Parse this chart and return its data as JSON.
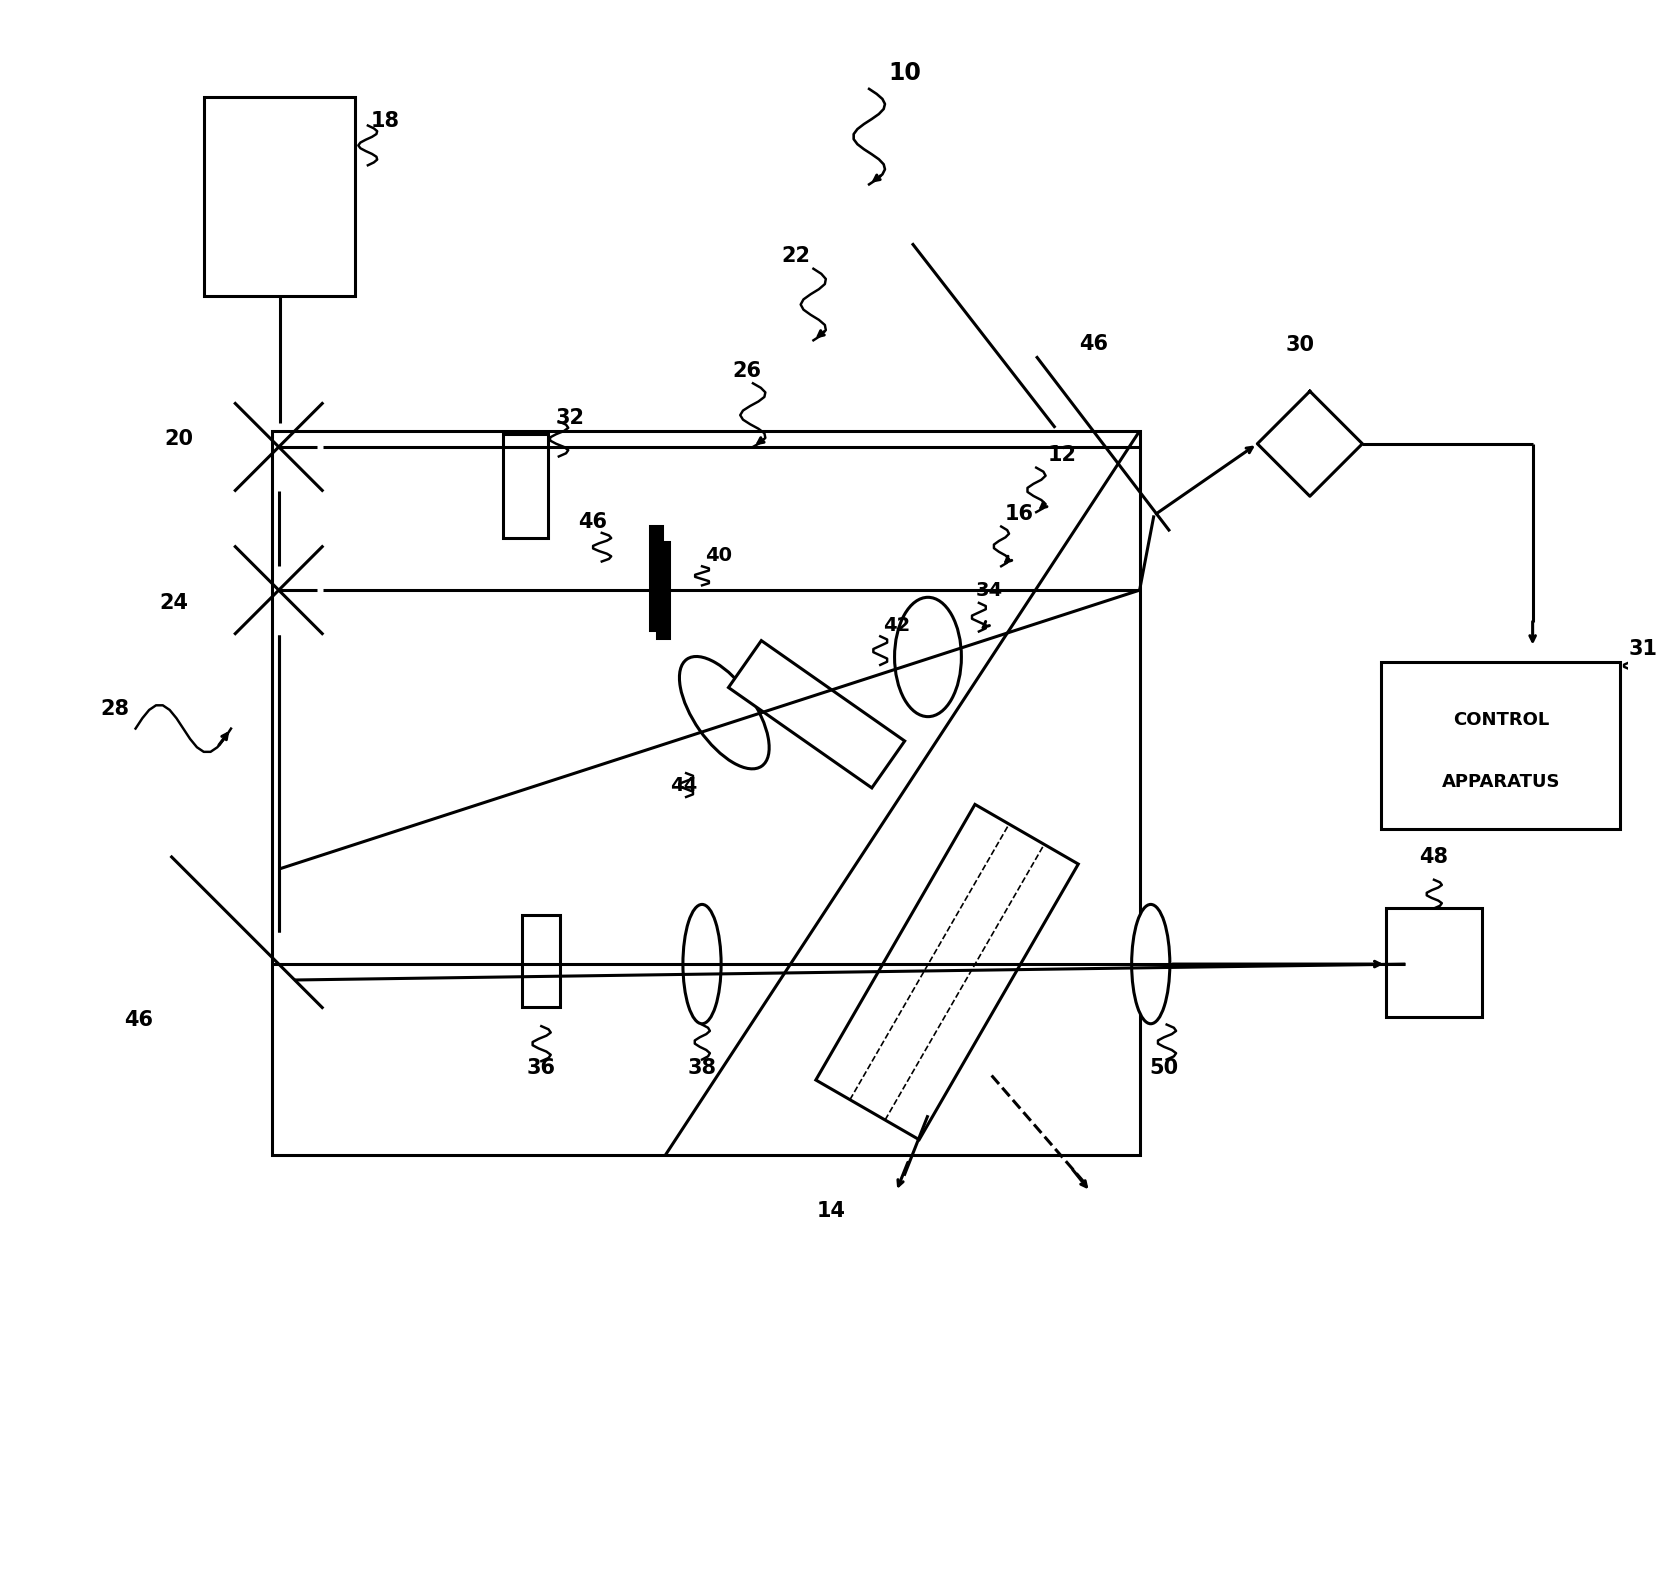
{
  "fig_width": 16.65,
  "fig_height": 15.94,
  "bg_color": "#ffffff",
  "line_color": "#000000",
  "lw": 2.2
}
